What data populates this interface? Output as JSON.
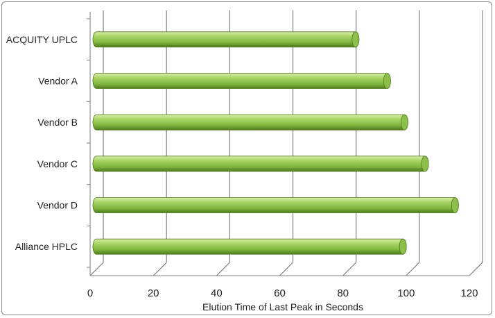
{
  "chart_data": {
    "type": "bar",
    "orientation": "horizontal",
    "style": "3d-cylinder",
    "categories": [
      "ACQUITY UPLC",
      "Vendor A",
      "Vendor B",
      "Vendor C",
      "Vendor D",
      "Alliance HPLC"
    ],
    "values": [
      82,
      92,
      97.5,
      104,
      113.5,
      97
    ],
    "xlabel": "Elution Time of Last Peak in Seconds",
    "ylabel": "",
    "xlim": [
      0,
      120
    ],
    "xticks": [
      "0",
      "20",
      "40",
      "60",
      "80",
      "100",
      "120"
    ],
    "grid": true,
    "legend": "none",
    "colors": {
      "bar_light": "#b6de7a",
      "bar_mid": "#8cc04a",
      "bar_dark": "#4f7a1c",
      "grid": "#7f7f7f"
    }
  }
}
